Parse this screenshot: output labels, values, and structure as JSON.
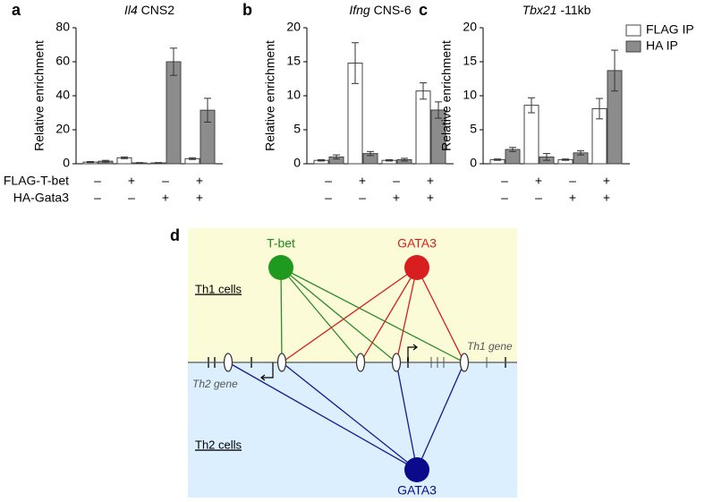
{
  "chart_data": [
    {
      "type": "bar",
      "panel": "a",
      "title_gene": "Il4",
      "title_suffix": "CNS2",
      "ylabel": "Relative enrichment",
      "ylim": [
        0,
        80
      ],
      "yticks": [
        0,
        20,
        40,
        60,
        80
      ],
      "series": [
        {
          "name": "FLAG IP",
          "color": "#ffffff",
          "values": [
            1,
            3.5,
            0.5,
            3
          ],
          "errors": [
            0.3,
            0.5,
            0.2,
            0.5
          ]
        },
        {
          "name": "HA IP",
          "color": "#8c8c8c",
          "values": [
            1.5,
            0.5,
            60,
            31.5
          ],
          "errors": [
            0.5,
            0.2,
            8,
            7
          ]
        }
      ]
    },
    {
      "type": "bar",
      "panel": "b",
      "title_gene": "Ifng",
      "title_suffix": "CNS-6",
      "ylabel": "Relative enrichment",
      "ylim": [
        0,
        20
      ],
      "yticks": [
        0,
        5,
        10,
        15,
        20
      ],
      "series": [
        {
          "name": "FLAG IP",
          "color": "#ffffff",
          "values": [
            0.5,
            14.8,
            0.5,
            10.7
          ],
          "errors": [
            0.1,
            3,
            0.1,
            1.2
          ]
        },
        {
          "name": "HA IP",
          "color": "#8c8c8c",
          "values": [
            1.0,
            1.5,
            0.6,
            7.9
          ],
          "errors": [
            0.3,
            0.3,
            0.2,
            1.2
          ]
        }
      ]
    },
    {
      "type": "bar",
      "panel": "c",
      "title_gene": "Tbx21",
      "title_suffix": "-11kb",
      "ylabel": "Relative enrichment",
      "ylim": [
        0,
        20
      ],
      "yticks": [
        0,
        5,
        10,
        15,
        20
      ],
      "series": [
        {
          "name": "FLAG IP",
          "color": "#ffffff",
          "values": [
            0.6,
            8.6,
            0.6,
            8.1
          ],
          "errors": [
            0.1,
            1.1,
            0.1,
            1.5
          ]
        },
        {
          "name": "HA IP",
          "color": "#8c8c8c",
          "values": [
            2.1,
            1.0,
            1.6,
            13.7
          ],
          "errors": [
            0.3,
            0.5,
            0.3,
            3
          ]
        }
      ]
    }
  ],
  "conditions": {
    "labels": [
      "FLAG-T-bet",
      "HA-Gata3"
    ],
    "signs": [
      [
        "–",
        "+",
        "–",
        "+"
      ],
      [
        "–",
        "–",
        "+",
        "+"
      ]
    ]
  },
  "diagram": {
    "panel": "d",
    "th1_label": "Th1 cells",
    "th2_label": "Th2 cells",
    "th1_gene": "Th1 gene",
    "th2_gene": "Th2 gene",
    "nodes": [
      {
        "label": "T-bet"
      },
      {
        "label": "GATA3"
      },
      {
        "label": "GATA3"
      }
    ]
  }
}
